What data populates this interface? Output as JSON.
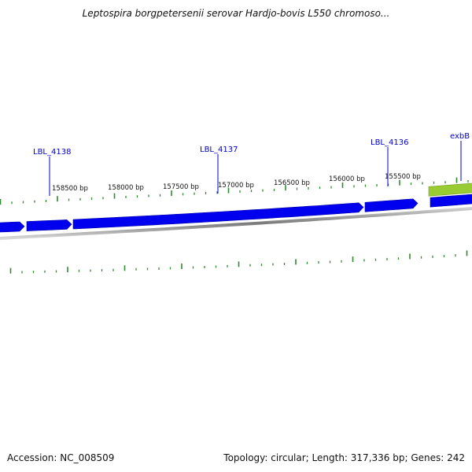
{
  "title": "Leptospira borgpetersenii serovar Hardjo-bovis L550 chromoso...",
  "accession_text": "Accession: NC_008509",
  "topology_text": "Topology: circular; Length: 317,336 bp; Genes: 242",
  "colors": {
    "gene_forward": "#0000ee",
    "gene_highlight": "#99cc33",
    "tick": "#2e8b2e",
    "backbone": "#888888",
    "label": "#0000cc"
  },
  "position_labels": [
    {
      "text": "158500 bp",
      "bp": 158500
    },
    {
      "text": "158000 bp",
      "bp": 158000
    },
    {
      "text": "157500 bp",
      "bp": 157500
    },
    {
      "text": "157000 bp",
      "bp": 157000
    },
    {
      "text": "156500 bp",
      "bp": 156500
    },
    {
      "text": "156000 bp",
      "bp": 156000
    },
    {
      "text": "155500 bp",
      "bp": 155500
    }
  ],
  "gene_labels": [
    {
      "name": "LBL_4138"
    },
    {
      "name": "LBL_4137"
    },
    {
      "name": "LBL_4136"
    },
    {
      "name": "exbB"
    }
  ]
}
